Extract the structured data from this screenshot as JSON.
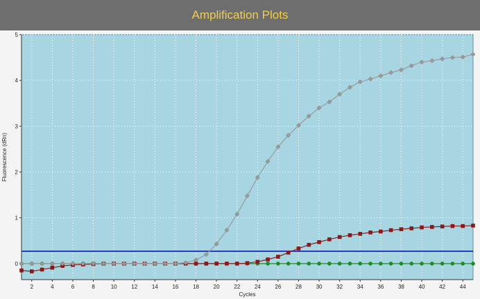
{
  "window": {
    "title": "Amplification Plots"
  },
  "chart_data": {
    "type": "line",
    "title": "Amplification Plots",
    "xlabel": "Cycles",
    "ylabel": "Fluorescence (dRn)",
    "xlim": [
      1,
      45
    ],
    "ylim": [
      -0.35,
      5
    ],
    "x_ticks": [
      2,
      4,
      6,
      8,
      10,
      12,
      14,
      16,
      18,
      20,
      22,
      24,
      26,
      28,
      30,
      32,
      34,
      36,
      38,
      40,
      42,
      44
    ],
    "y_ticks": [
      0,
      1,
      2,
      3,
      4,
      5
    ],
    "grid": true,
    "threshold": {
      "value": 0.27,
      "color": "#2b3bbd"
    },
    "colors": {
      "plot_background": "#a7d6e2",
      "title_bar": "#6e6e6e",
      "title_text": "#f2cf4a"
    },
    "series": [
      {
        "color": "#9a9a9a",
        "marker": "diamond",
        "x": [
          1,
          2,
          3,
          4,
          5,
          6,
          7,
          8,
          9,
          10,
          11,
          12,
          13,
          14,
          15,
          16,
          17,
          18,
          19,
          20,
          21,
          22,
          23,
          24,
          25,
          26,
          27,
          28,
          29,
          30,
          31,
          32,
          33,
          34,
          35,
          36,
          37,
          38,
          39,
          40,
          41,
          42,
          43,
          44,
          45
        ],
        "values": [
          0,
          0,
          0,
          0,
          0,
          0,
          0,
          0,
          0,
          0,
          0,
          0,
          0,
          0,
          0,
          0,
          0.02,
          0.08,
          0.2,
          0.43,
          0.73,
          1.08,
          1.48,
          1.88,
          2.23,
          2.55,
          2.8,
          3.02,
          3.22,
          3.4,
          3.53,
          3.7,
          3.85,
          3.97,
          4.03,
          4.1,
          4.17,
          4.23,
          4.32,
          4.4,
          4.43,
          4.47,
          4.5,
          4.51,
          4.57
        ]
      },
      {
        "color": "#8a1a1a",
        "marker": "square",
        "x": [
          1,
          2,
          3,
          4,
          5,
          6,
          7,
          8,
          9,
          10,
          11,
          12,
          13,
          14,
          15,
          16,
          17,
          18,
          19,
          20,
          21,
          22,
          23,
          24,
          25,
          26,
          27,
          28,
          29,
          30,
          31,
          32,
          33,
          34,
          35,
          36,
          37,
          38,
          39,
          40,
          41,
          42,
          43,
          44,
          45
        ],
        "values": [
          -0.15,
          -0.17,
          -0.13,
          -0.09,
          -0.05,
          -0.03,
          -0.02,
          -0.01,
          0,
          0,
          0,
          0,
          0,
          0,
          0,
          0,
          0,
          0,
          0,
          0,
          0,
          0,
          0.01,
          0.04,
          0.09,
          0.15,
          0.24,
          0.33,
          0.41,
          0.47,
          0.53,
          0.58,
          0.62,
          0.65,
          0.68,
          0.7,
          0.73,
          0.75,
          0.77,
          0.79,
          0.8,
          0.81,
          0.82,
          0.82,
          0.83
        ]
      },
      {
        "color": "#1f8a2a",
        "marker": "circle",
        "x": [
          1,
          2,
          3,
          4,
          5,
          6,
          7,
          8,
          9,
          10,
          11,
          12,
          13,
          14,
          15,
          16,
          17,
          18,
          19,
          20,
          21,
          22,
          23,
          24,
          25,
          26,
          27,
          28,
          29,
          30,
          31,
          32,
          33,
          34,
          35,
          36,
          37,
          38,
          39,
          40,
          41,
          42,
          43,
          44,
          45
        ],
        "values": [
          0,
          0,
          0,
          0,
          0,
          0,
          0,
          0,
          0,
          0,
          0,
          0,
          0,
          0,
          0,
          0,
          0,
          0,
          0,
          0,
          0,
          0,
          0,
          0,
          0,
          0,
          0,
          0,
          0,
          0,
          0,
          0,
          0,
          0,
          0,
          0,
          0,
          0,
          0,
          0,
          0,
          0,
          0,
          0,
          0
        ]
      }
    ]
  }
}
